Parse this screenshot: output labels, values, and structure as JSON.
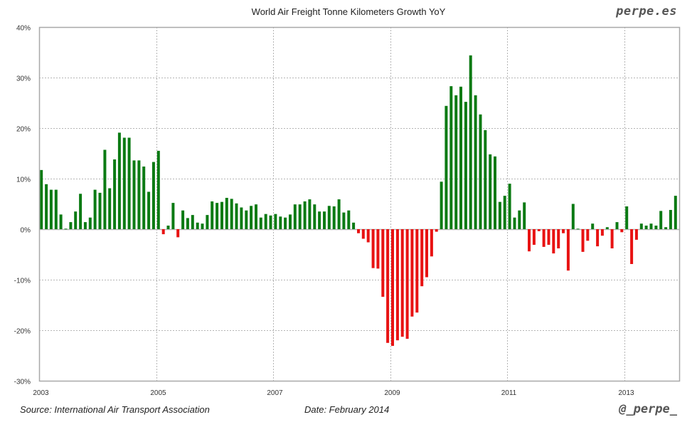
{
  "header": {
    "title": "World Air Freight Tonne Kilometers Growth YoY",
    "brand": "perpe.es"
  },
  "footer": {
    "source": "Source: International Air Transport Association",
    "date": "Date: February 2014",
    "handle": "@_perpe_"
  },
  "colors": {
    "positive": "#0b7a13",
    "negative": "#e81212",
    "grid": "#b5b5b5",
    "frame": "#a8a8a8"
  },
  "chart_data": {
    "type": "bar",
    "title": "World Air Freight Tonne Kilometers Growth YoY",
    "xlabel": "",
    "ylabel": "",
    "ylim": [
      -30,
      40
    ],
    "yticks": [
      40,
      30,
      20,
      10,
      0,
      -10,
      -20,
      -30
    ],
    "ytick_labels": [
      "40%",
      "30%",
      "20%",
      "10%",
      "0%",
      "-10%",
      "-20%",
      "-30%"
    ],
    "xticks": [
      "2003",
      "2005",
      "2007",
      "2009",
      "2011",
      "2013"
    ],
    "grid": true,
    "start": "2003-01",
    "frequency": "monthly",
    "end": "2013-11",
    "units": "%",
    "values": [
      11.7,
      8.9,
      7.8,
      7.8,
      2.9,
      0.1,
      1.4,
      3.5,
      7.0,
      1.4,
      2.3,
      7.8,
      7.2,
      15.7,
      8.1,
      13.8,
      19.1,
      18.1,
      18.1,
      13.6,
      13.6,
      12.4,
      7.4,
      13.3,
      15.5,
      -1.0,
      0.7,
      5.2,
      -1.6,
      3.7,
      2.2,
      2.8,
      1.3,
      1.1,
      2.8,
      5.5,
      5.2,
      5.4,
      6.2,
      6.0,
      5.1,
      4.3,
      3.7,
      4.6,
      4.9,
      2.3,
      3.0,
      2.7,
      3.0,
      2.5,
      2.3,
      2.9,
      4.9,
      4.9,
      5.5,
      5.9,
      4.9,
      3.5,
      3.5,
      4.6,
      4.5,
      5.9,
      3.3,
      3.7,
      1.3,
      -0.8,
      -1.9,
      -2.6,
      -7.7,
      -7.8,
      -13.4,
      -22.5,
      -23.1,
      -22.0,
      -21.3,
      -21.7,
      -17.3,
      -16.5,
      -11.3,
      -9.5,
      -5.4,
      -0.5,
      9.4,
      24.4,
      28.3,
      26.5,
      28.2,
      25.2,
      34.4,
      26.5,
      22.7,
      19.6,
      14.8,
      14.4,
      5.4,
      6.6,
      9.0,
      2.3,
      3.7,
      5.3,
      -4.4,
      -3.1,
      -0.4,
      -3.5,
      -3.1,
      -4.8,
      -3.8,
      -0.8,
      -8.2,
      5.0,
      0.1,
      -4.5,
      -2.3,
      1.1,
      -3.4,
      -1.3,
      0.4,
      -3.8,
      1.4,
      -0.6,
      4.5,
      -6.9,
      -2.1,
      1.1,
      0.7,
      1.1,
      0.7,
      3.6,
      0.4,
      3.8,
      6.6
    ]
  }
}
